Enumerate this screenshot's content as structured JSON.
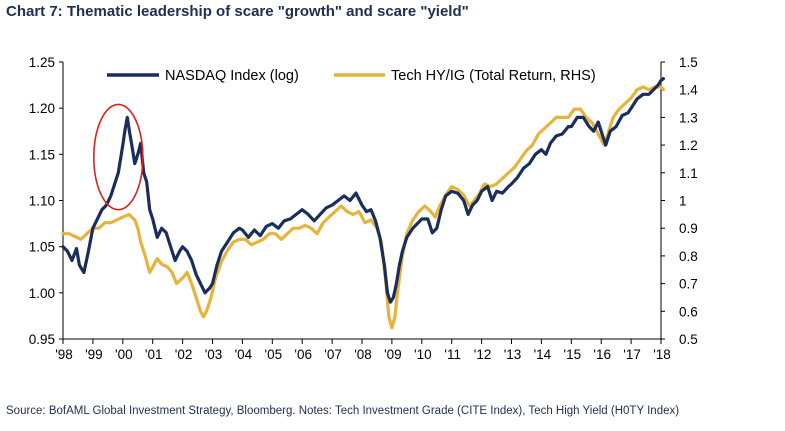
{
  "chart_data": {
    "type": "line",
    "title": "Chart 7: Thematic leadership of scare \"growth\" and scare \"yield\"",
    "source": "Source: BofAML Global Investment Strategy, Bloomberg. Notes: Tech Investment Grade (CITE Index), Tech High Yield (H0TY Index)",
    "x_ticks": [
      "'98",
      "'99",
      "'00",
      "'01",
      "'02",
      "'03",
      "'04",
      "'05",
      "'06",
      "'07",
      "'08",
      "'09",
      "'10",
      "'11",
      "'12",
      "'13",
      "'14",
      "'15",
      "'16",
      "'17",
      "'18"
    ],
    "x_range": [
      1998,
      2018
    ],
    "y_left": {
      "range": [
        0.95,
        1.25
      ],
      "ticks": [
        "0.95",
        "1.00",
        "1.05",
        "1.10",
        "1.15",
        "1.20",
        "1.25"
      ]
    },
    "y_right": {
      "range": [
        0.5,
        1.5
      ],
      "ticks": [
        "0.5",
        "0.6",
        "0.7",
        "0.8",
        "0.9",
        "1",
        "1.1",
        "1.2",
        "1.3",
        "1.4",
        "1.5"
      ]
    },
    "legend_position": "top",
    "grid": false,
    "series": [
      {
        "name": "NASDAQ Index (log)",
        "axis": "left",
        "color": "#1b2d5b",
        "points": [
          [
            1998.0,
            1.05
          ],
          [
            1998.15,
            1.045
          ],
          [
            1998.3,
            1.035
          ],
          [
            1998.45,
            1.048
          ],
          [
            1998.55,
            1.03
          ],
          [
            1998.7,
            1.022
          ],
          [
            1998.85,
            1.045
          ],
          [
            1999.0,
            1.07
          ],
          [
            1999.15,
            1.08
          ],
          [
            1999.3,
            1.09
          ],
          [
            1999.45,
            1.095
          ],
          [
            1999.6,
            1.105
          ],
          [
            1999.75,
            1.12
          ],
          [
            1999.85,
            1.13
          ],
          [
            1999.95,
            1.15
          ],
          [
            2000.0,
            1.16
          ],
          [
            2000.08,
            1.178
          ],
          [
            2000.15,
            1.19
          ],
          [
            2000.22,
            1.175
          ],
          [
            2000.3,
            1.16
          ],
          [
            2000.4,
            1.14
          ],
          [
            2000.5,
            1.15
          ],
          [
            2000.6,
            1.162
          ],
          [
            2000.7,
            1.13
          ],
          [
            2000.8,
            1.12
          ],
          [
            2000.9,
            1.09
          ],
          [
            2001.0,
            1.08
          ],
          [
            2001.15,
            1.06
          ],
          [
            2001.3,
            1.07
          ],
          [
            2001.45,
            1.065
          ],
          [
            2001.6,
            1.05
          ],
          [
            2001.75,
            1.035
          ],
          [
            2001.9,
            1.045
          ],
          [
            2002.0,
            1.05
          ],
          [
            2002.15,
            1.045
          ],
          [
            2002.3,
            1.035
          ],
          [
            2002.45,
            1.02
          ],
          [
            2002.6,
            1.01
          ],
          [
            2002.75,
            1.0
          ],
          [
            2002.9,
            1.005
          ],
          [
            2003.0,
            1.01
          ],
          [
            2003.15,
            1.03
          ],
          [
            2003.3,
            1.045
          ],
          [
            2003.5,
            1.055
          ],
          [
            2003.7,
            1.065
          ],
          [
            2003.9,
            1.07
          ],
          [
            2004.0,
            1.068
          ],
          [
            2004.2,
            1.06
          ],
          [
            2004.4,
            1.068
          ],
          [
            2004.6,
            1.062
          ],
          [
            2004.8,
            1.072
          ],
          [
            2005.0,
            1.075
          ],
          [
            2005.2,
            1.07
          ],
          [
            2005.4,
            1.078
          ],
          [
            2005.6,
            1.08
          ],
          [
            2005.8,
            1.085
          ],
          [
            2006.0,
            1.09
          ],
          [
            2006.2,
            1.085
          ],
          [
            2006.4,
            1.078
          ],
          [
            2006.6,
            1.085
          ],
          [
            2006.8,
            1.092
          ],
          [
            2007.0,
            1.095
          ],
          [
            2007.2,
            1.1
          ],
          [
            2007.4,
            1.105
          ],
          [
            2007.6,
            1.1
          ],
          [
            2007.8,
            1.108
          ],
          [
            2008.0,
            1.095
          ],
          [
            2008.15,
            1.088
          ],
          [
            2008.3,
            1.09
          ],
          [
            2008.45,
            1.078
          ],
          [
            2008.6,
            1.06
          ],
          [
            2008.75,
            1.03
          ],
          [
            2008.85,
            1.0
          ],
          [
            2008.95,
            0.99
          ],
          [
            2009.05,
            0.995
          ],
          [
            2009.15,
            1.01
          ],
          [
            2009.25,
            1.03
          ],
          [
            2009.35,
            1.045
          ],
          [
            2009.5,
            1.06
          ],
          [
            2009.7,
            1.07
          ],
          [
            2009.85,
            1.075
          ],
          [
            2010.0,
            1.08
          ],
          [
            2010.2,
            1.08
          ],
          [
            2010.35,
            1.065
          ],
          [
            2010.5,
            1.07
          ],
          [
            2010.65,
            1.09
          ],
          [
            2010.8,
            1.105
          ],
          [
            2011.0,
            1.11
          ],
          [
            2011.2,
            1.108
          ],
          [
            2011.4,
            1.1
          ],
          [
            2011.55,
            1.085
          ],
          [
            2011.7,
            1.095
          ],
          [
            2011.85,
            1.1
          ],
          [
            2012.0,
            1.11
          ],
          [
            2012.2,
            1.115
          ],
          [
            2012.35,
            1.1
          ],
          [
            2012.5,
            1.11
          ],
          [
            2012.7,
            1.108
          ],
          [
            2012.9,
            1.115
          ],
          [
            2013.0,
            1.118
          ],
          [
            2013.2,
            1.125
          ],
          [
            2013.4,
            1.135
          ],
          [
            2013.6,
            1.14
          ],
          [
            2013.8,
            1.15
          ],
          [
            2014.0,
            1.155
          ],
          [
            2014.15,
            1.15
          ],
          [
            2014.3,
            1.162
          ],
          [
            2014.5,
            1.17
          ],
          [
            2014.7,
            1.172
          ],
          [
            2014.9,
            1.18
          ],
          [
            2015.0,
            1.18
          ],
          [
            2015.2,
            1.19
          ],
          [
            2015.4,
            1.19
          ],
          [
            2015.6,
            1.18
          ],
          [
            2015.75,
            1.175
          ],
          [
            2015.9,
            1.185
          ],
          [
            2016.0,
            1.175
          ],
          [
            2016.15,
            1.16
          ],
          [
            2016.3,
            1.175
          ],
          [
            2016.5,
            1.18
          ],
          [
            2016.7,
            1.192
          ],
          [
            2016.9,
            1.195
          ],
          [
            2017.0,
            1.2
          ],
          [
            2017.2,
            1.21
          ],
          [
            2017.4,
            1.215
          ],
          [
            2017.6,
            1.215
          ],
          [
            2017.75,
            1.22
          ],
          [
            2017.9,
            1.225
          ],
          [
            2018.0,
            1.23
          ],
          [
            2018.08,
            1.232
          ]
        ]
      },
      {
        "name": "Tech HY/IG (Total Return, RHS)",
        "axis": "right",
        "color": "#e6b43c",
        "points": [
          [
            1998.0,
            0.88
          ],
          [
            1998.2,
            0.88
          ],
          [
            1998.4,
            0.87
          ],
          [
            1998.6,
            0.86
          ],
          [
            1998.8,
            0.88
          ],
          [
            1999.0,
            0.9
          ],
          [
            1999.2,
            0.9
          ],
          [
            1999.4,
            0.92
          ],
          [
            1999.6,
            0.92
          ],
          [
            1999.8,
            0.93
          ],
          [
            2000.0,
            0.94
          ],
          [
            2000.2,
            0.95
          ],
          [
            2000.4,
            0.93
          ],
          [
            2000.5,
            0.9
          ],
          [
            2000.6,
            0.85
          ],
          [
            2000.75,
            0.8
          ],
          [
            2000.9,
            0.74
          ],
          [
            2001.0,
            0.76
          ],
          [
            2001.15,
            0.79
          ],
          [
            2001.3,
            0.77
          ],
          [
            2001.5,
            0.76
          ],
          [
            2001.65,
            0.74
          ],
          [
            2001.8,
            0.7
          ],
          [
            2001.9,
            0.71
          ],
          [
            2002.0,
            0.72
          ],
          [
            2002.15,
            0.74
          ],
          [
            2002.3,
            0.7
          ],
          [
            2002.45,
            0.65
          ],
          [
            2002.6,
            0.6
          ],
          [
            2002.7,
            0.58
          ],
          [
            2002.8,
            0.6
          ],
          [
            2002.95,
            0.65
          ],
          [
            2003.1,
            0.72
          ],
          [
            2003.3,
            0.78
          ],
          [
            2003.5,
            0.82
          ],
          [
            2003.7,
            0.85
          ],
          [
            2003.9,
            0.86
          ],
          [
            2004.1,
            0.86
          ],
          [
            2004.3,
            0.84
          ],
          [
            2004.5,
            0.85
          ],
          [
            2004.7,
            0.86
          ],
          [
            2004.9,
            0.88
          ],
          [
            2005.1,
            0.88
          ],
          [
            2005.3,
            0.86
          ],
          [
            2005.5,
            0.88
          ],
          [
            2005.7,
            0.9
          ],
          [
            2005.9,
            0.9
          ],
          [
            2006.1,
            0.91
          ],
          [
            2006.3,
            0.9
          ],
          [
            2006.5,
            0.88
          ],
          [
            2006.7,
            0.92
          ],
          [
            2006.9,
            0.94
          ],
          [
            2007.1,
            0.96
          ],
          [
            2007.3,
            0.98
          ],
          [
            2007.5,
            0.96
          ],
          [
            2007.7,
            0.95
          ],
          [
            2007.9,
            0.96
          ],
          [
            2008.1,
            0.92
          ],
          [
            2008.3,
            0.93
          ],
          [
            2008.5,
            0.9
          ],
          [
            2008.65,
            0.85
          ],
          [
            2008.8,
            0.7
          ],
          [
            2008.9,
            0.58
          ],
          [
            2009.0,
            0.54
          ],
          [
            2009.1,
            0.58
          ],
          [
            2009.2,
            0.68
          ],
          [
            2009.35,
            0.8
          ],
          [
            2009.5,
            0.88
          ],
          [
            2009.7,
            0.93
          ],
          [
            2009.9,
            0.96
          ],
          [
            2010.1,
            0.98
          ],
          [
            2010.3,
            0.96
          ],
          [
            2010.45,
            0.94
          ],
          [
            2010.6,
            0.98
          ],
          [
            2010.8,
            1.02
          ],
          [
            2011.0,
            1.05
          ],
          [
            2011.2,
            1.04
          ],
          [
            2011.4,
            1.02
          ],
          [
            2011.6,
            0.98
          ],
          [
            2011.75,
            1.0
          ],
          [
            2011.9,
            1.02
          ],
          [
            2012.1,
            1.06
          ],
          [
            2012.3,
            1.05
          ],
          [
            2012.5,
            1.06
          ],
          [
            2012.7,
            1.08
          ],
          [
            2012.9,
            1.1
          ],
          [
            2013.1,
            1.12
          ],
          [
            2013.3,
            1.15
          ],
          [
            2013.5,
            1.18
          ],
          [
            2013.7,
            1.2
          ],
          [
            2013.9,
            1.24
          ],
          [
            2014.1,
            1.26
          ],
          [
            2014.3,
            1.28
          ],
          [
            2014.5,
            1.3
          ],
          [
            2014.7,
            1.3
          ],
          [
            2014.9,
            1.3
          ],
          [
            2015.1,
            1.33
          ],
          [
            2015.3,
            1.33
          ],
          [
            2015.5,
            1.3
          ],
          [
            2015.7,
            1.28
          ],
          [
            2015.85,
            1.25
          ],
          [
            2016.0,
            1.22
          ],
          [
            2016.1,
            1.2
          ],
          [
            2016.25,
            1.25
          ],
          [
            2016.4,
            1.3
          ],
          [
            2016.6,
            1.33
          ],
          [
            2016.8,
            1.35
          ],
          [
            2017.0,
            1.37
          ],
          [
            2017.2,
            1.4
          ],
          [
            2017.4,
            1.41
          ],
          [
            2017.6,
            1.4
          ],
          [
            2017.8,
            1.41
          ],
          [
            2018.0,
            1.41
          ],
          [
            2018.08,
            1.4
          ]
        ]
      }
    ],
    "annotations": [
      {
        "type": "ellipse",
        "color": "#e02020",
        "x_center": 1999.85,
        "y_center": 1.147,
        "x_radius": 0.82,
        "y_radius": 0.057
      }
    ]
  }
}
